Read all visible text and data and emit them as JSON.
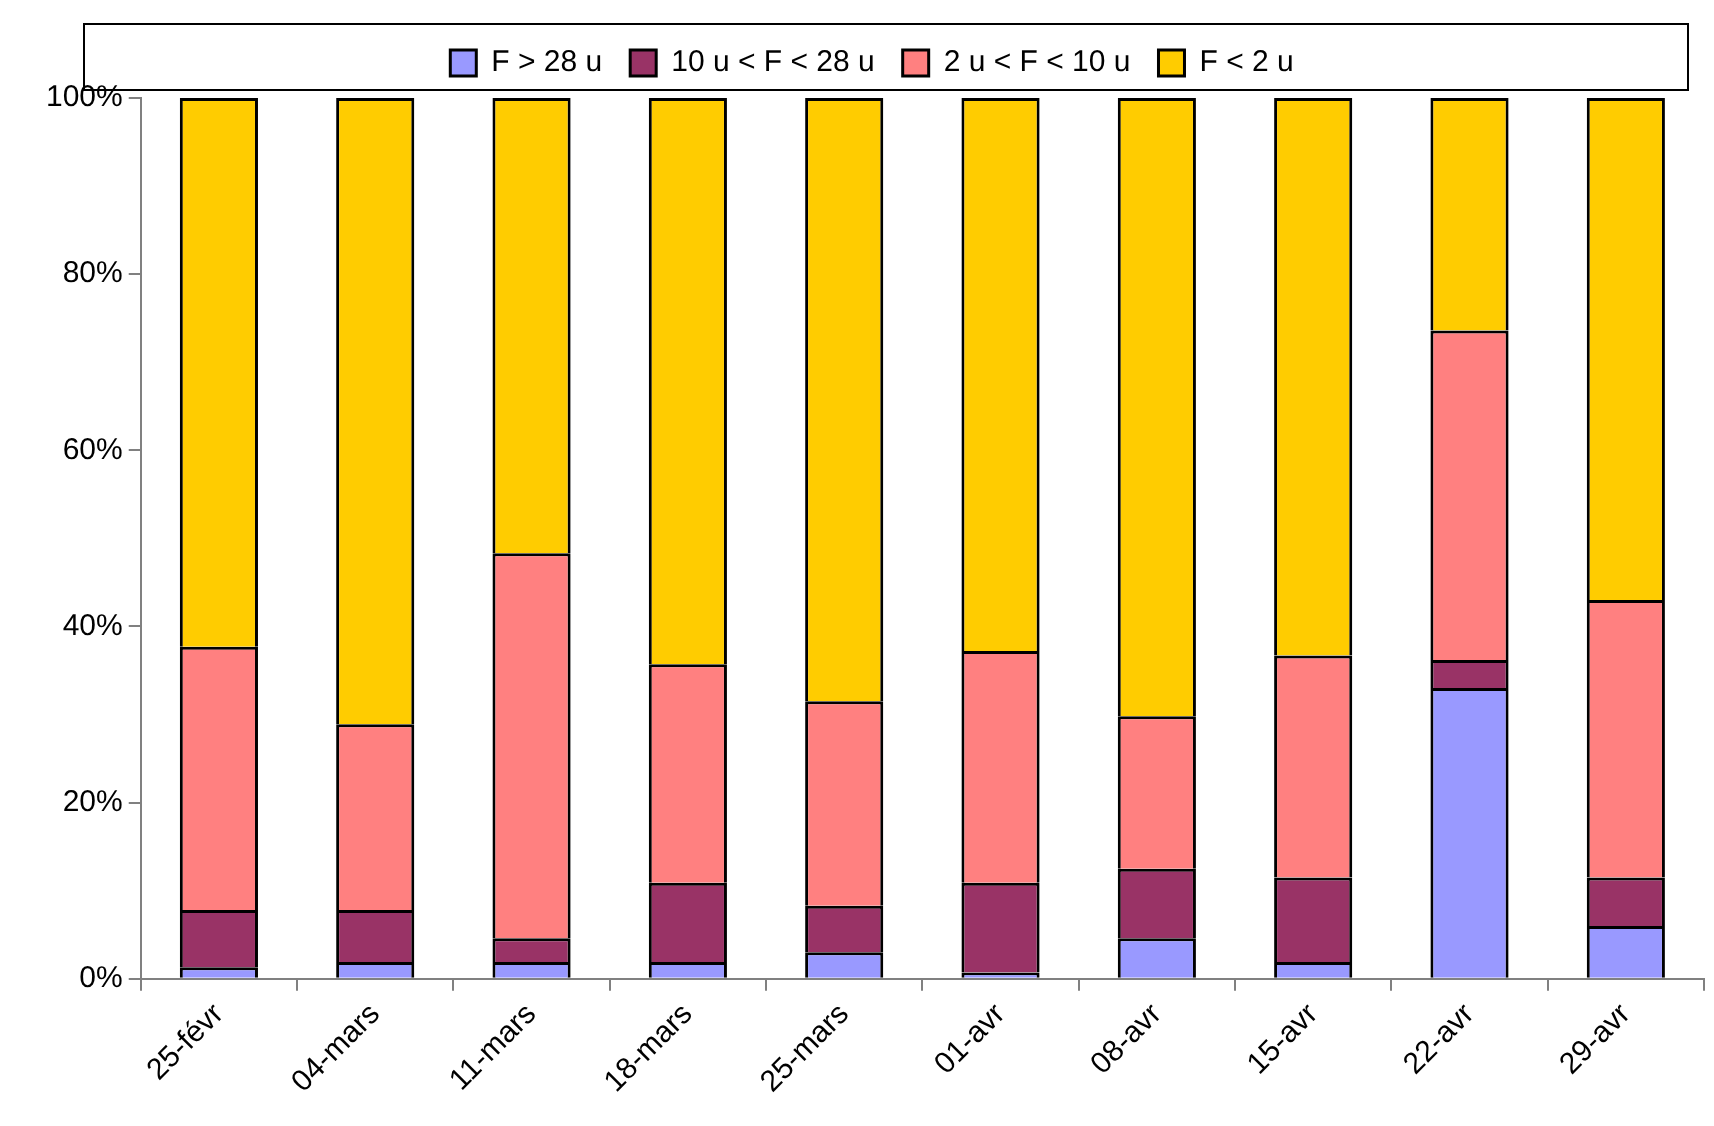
{
  "chart_data": {
    "type": "bar",
    "stacked": true,
    "legend": "top",
    "categories": [
      "25-févr",
      "04-mars",
      "11-mars",
      "18-mars",
      "25-mars",
      "01-avr",
      "08-avr",
      "15-avr",
      "22-avr",
      "29-avr"
    ],
    "series": [
      {
        "name": "F > 28 u",
        "color": "#9999ff",
        "values": [
          1.3,
          1.9,
          1.9,
          1.9,
          3.0,
          0.7,
          4.6,
          1.9,
          33.0,
          6.0
        ]
      },
      {
        "name": "10 u < F < 28 u",
        "color": "#993366",
        "values": [
          6.5,
          5.9,
          2.7,
          9.0,
          5.3,
          10.2,
          7.9,
          9.6,
          3.2,
          5.5
        ]
      },
      {
        "name": "2 u < F < 10 u",
        "color": "#ff8080",
        "values": [
          29.9,
          21.1,
          43.7,
          24.8,
          23.2,
          26.3,
          17.3,
          25.2,
          37.4,
          31.5
        ]
      },
      {
        "name": "F < 2 u",
        "color": "#ffcc00",
        "values": [
          62.3,
          71.1,
          51.7,
          64.3,
          68.5,
          62.8,
          70.2,
          63.3,
          26.4,
          57.0
        ]
      }
    ],
    "ylim": [
      0,
      100
    ],
    "yticks": [
      {
        "value": 0,
        "label": "0%"
      },
      {
        "value": 20,
        "label": "20%"
      },
      {
        "value": 40,
        "label": "40%"
      },
      {
        "value": 60,
        "label": "60%"
      },
      {
        "value": 80,
        "label": "80%"
      },
      {
        "value": 100,
        "label": "100%"
      }
    ],
    "grid": false
  }
}
